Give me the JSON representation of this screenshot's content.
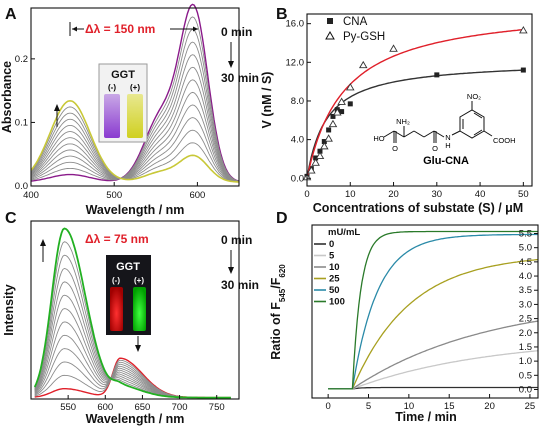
{
  "chart_data": [
    {
      "panel": "A",
      "type": "line",
      "xlabel": "Wavelength / nm",
      "ylabel": "Absorbance",
      "xlim": [
        400,
        650
      ],
      "ylim": [
        0,
        0.28
      ],
      "xticks": [
        400,
        500,
        600
      ],
      "yticks": [
        0.0,
        0.1,
        0.2
      ],
      "ytick_labels": [
        "0.0",
        "0.1",
        "0.2"
      ],
      "annotations": {
        "delta": "Δλ = 150 nm",
        "t0": "0 min",
        "t30": "30 min",
        "vial_title": "GGT",
        "vial_minus": "(-)",
        "vial_plus": "(+)"
      },
      "curves": {
        "count": 13,
        "peak1_nm": 447,
        "peak2_nm": 596,
        "initial": {
          "peak1": 0.012,
          "peak2": 0.265,
          "color": "#8a1a8a"
        },
        "final": {
          "peak1": 0.128,
          "peak2": 0.04,
          "color": "#c8c838"
        }
      }
    },
    {
      "panel": "B",
      "type": "scatter",
      "xlabel": "Concentrations of substate (S) / μM",
      "ylabel": "V (nM / S)",
      "xlim": [
        0,
        52
      ],
      "ylim": [
        -0.8,
        17
      ],
      "xticks": [
        0,
        10,
        20,
        30,
        40,
        50
      ],
      "yticks": [
        0.0,
        4.0,
        8.0,
        12.0,
        16.0
      ],
      "ytick_labels": [
        "0.0",
        "4.0",
        "8.0",
        "12.0",
        "16.0"
      ],
      "series": [
        {
          "name": "CNA",
          "marker": "square",
          "color": "#222222",
          "x": [
            0,
            1,
            2,
            3,
            4,
            5,
            6,
            7,
            8,
            10,
            30,
            50
          ],
          "y": [
            0.2,
            1.0,
            2.1,
            2.8,
            3.8,
            5.0,
            6.4,
            7.1,
            6.9,
            7.7,
            10.7,
            11.2
          ],
          "fit": {
            "vmax": 12.2,
            "km": 4.5
          }
        },
        {
          "name": "Py-GSH",
          "marker": "triangle",
          "color": "#e0202a",
          "x": [
            0,
            1,
            2,
            3,
            4,
            5,
            6,
            7,
            8,
            10,
            13,
            20,
            50
          ],
          "y": [
            0.1,
            0.8,
            1.6,
            2.3,
            3.3,
            4.1,
            5.6,
            6.8,
            7.9,
            9.4,
            11.7,
            13.4,
            15.3
          ],
          "fit": {
            "vmax": 18.0,
            "km": 8.5
          }
        }
      ],
      "structure_label": "Glu-CNA",
      "structure_atoms": {
        "nh2": "NH₂",
        "ho": "HO",
        "o1": "O",
        "o2": "O",
        "nh": "N",
        "h": "H",
        "no2": "NO₂",
        "cooh": "COOH"
      }
    },
    {
      "panel": "C",
      "type": "line",
      "xlabel": "Wavelength / nm",
      "ylabel": "Intensity",
      "xlim": [
        500,
        780
      ],
      "ylim": [
        0,
        1
      ],
      "xticks": [
        550,
        600,
        650,
        700,
        750
      ],
      "annotations": {
        "delta": "Δλ = 75 nm",
        "t0": "0 min",
        "t30": "30 min",
        "vial_title": "GGT",
        "vial_minus": "(-)",
        "vial_plus": "(+)"
      },
      "curves": {
        "count": 13,
        "peak1_nm": 545,
        "peak2_nm": 620,
        "initial": {
          "peak1": 0.05,
          "peak2": 0.22,
          "color": "#e0202a"
        },
        "final": {
          "peak1": 0.95,
          "peak2": 0.06,
          "color": "#22b022"
        }
      }
    },
    {
      "panel": "D",
      "type": "line",
      "xlabel": "Time / min",
      "ylabel_main": "Ratio of F",
      "ylabel_sub1": "545",
      "ylabel_sep": "/F",
      "ylabel_sub2": "620",
      "xlim": [
        -2,
        26
      ],
      "ylim": [
        -0.3,
        5.8
      ],
      "xticks": [
        0,
        5,
        10,
        15,
        20,
        25
      ],
      "yticks": [
        0.0,
        0.5,
        1.0,
        1.5,
        2.0,
        2.5,
        3.0,
        3.5,
        4.0,
        4.5,
        5.0,
        5.5
      ],
      "ytick_labels": [
        "0.0",
        "0.5",
        "1.0",
        "1.5",
        "2.0",
        "2.5",
        "3.0",
        "3.5",
        "4.0",
        "4.5",
        "5.0",
        "5.5"
      ],
      "legend_title": "mU/mL",
      "onset_min": 3,
      "series": [
        {
          "name": "0",
          "color": "#303030",
          "plateau": 0.05,
          "rate": 1.0
        },
        {
          "name": "5",
          "color": "#c8c8c8",
          "plateau": 1.8,
          "rate": 0.06
        },
        {
          "name": "10",
          "color": "#8a8a8a",
          "plateau": 3.2,
          "rate": 0.06
        },
        {
          "name": "25",
          "color": "#a8a020",
          "plateau": 4.75,
          "rate": 0.14
        },
        {
          "name": "50",
          "color": "#2a8aa8",
          "plateau": 5.45,
          "rate": 0.32
        },
        {
          "name": "100",
          "color": "#2a7a2a",
          "plateau": 5.55,
          "rate": 0.95
        }
      ]
    }
  ]
}
